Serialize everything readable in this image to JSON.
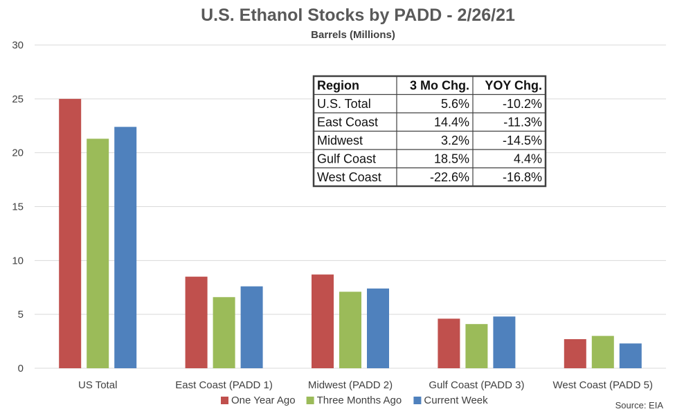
{
  "chart_data": {
    "type": "bar",
    "title": "U.S. Ethanol Stocks by PADD - 2/26/21",
    "subtitle": "Barrels (Millions)",
    "categories": [
      "US Total",
      "East Coast (PADD 1)",
      "Midwest (PADD 2)",
      "Gulf Coast (PADD 3)",
      "West Coast (PADD 5)"
    ],
    "series": [
      {
        "name": "One Year Ago",
        "color": "#c0504d",
        "values": [
          25.0,
          8.5,
          8.7,
          4.6,
          2.7
        ]
      },
      {
        "name": "Three Months Ago",
        "color": "#9bbb59",
        "values": [
          21.3,
          6.6,
          7.1,
          4.1,
          3.0
        ]
      },
      {
        "name": "Current Week",
        "color": "#4f81bd",
        "values": [
          22.4,
          7.6,
          7.4,
          4.8,
          2.3
        ]
      }
    ],
    "ylim": [
      0,
      30
    ],
    "yticks": [
      "0",
      "5",
      "10",
      "15",
      "20",
      "25",
      "30"
    ],
    "grid": true,
    "legend": "bottom",
    "source": "Source: EIA",
    "table": {
      "headers": [
        "Region",
        "3 Mo Chg.",
        "YOY Chg."
      ],
      "rows": [
        [
          "U.S. Total",
          "5.6%",
          "-10.2%"
        ],
        [
          "East Coast",
          "14.4%",
          "-11.3%"
        ],
        [
          "Midwest",
          "3.2%",
          "-14.5%"
        ],
        [
          "Gulf Coast",
          "18.5%",
          "4.4%"
        ],
        [
          "West Coast",
          "-22.6%",
          "-16.8%"
        ]
      ]
    }
  }
}
